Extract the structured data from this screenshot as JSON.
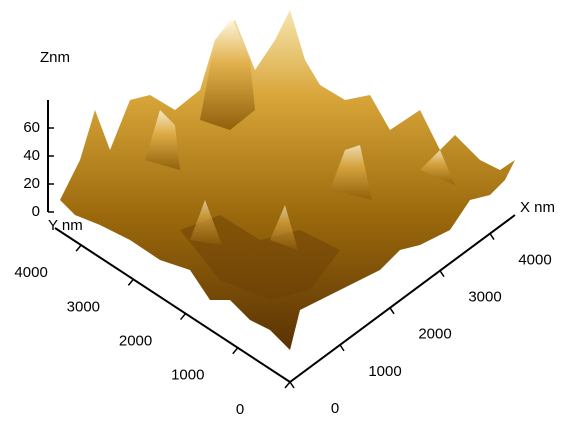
{
  "chart_data": {
    "type": "surface3d",
    "x_label": "X nm",
    "y_label": "Y nm",
    "z_label": "Znm",
    "xlim": [
      0,
      4500
    ],
    "xticks": [
      0,
      1000,
      2000,
      3000,
      4000
    ],
    "ylim": [
      0,
      4500
    ],
    "yticks": [
      0,
      1000,
      2000,
      3000,
      4000
    ],
    "zlim": [
      0,
      80
    ],
    "zticks": [
      0,
      20,
      40,
      60
    ]
  }
}
